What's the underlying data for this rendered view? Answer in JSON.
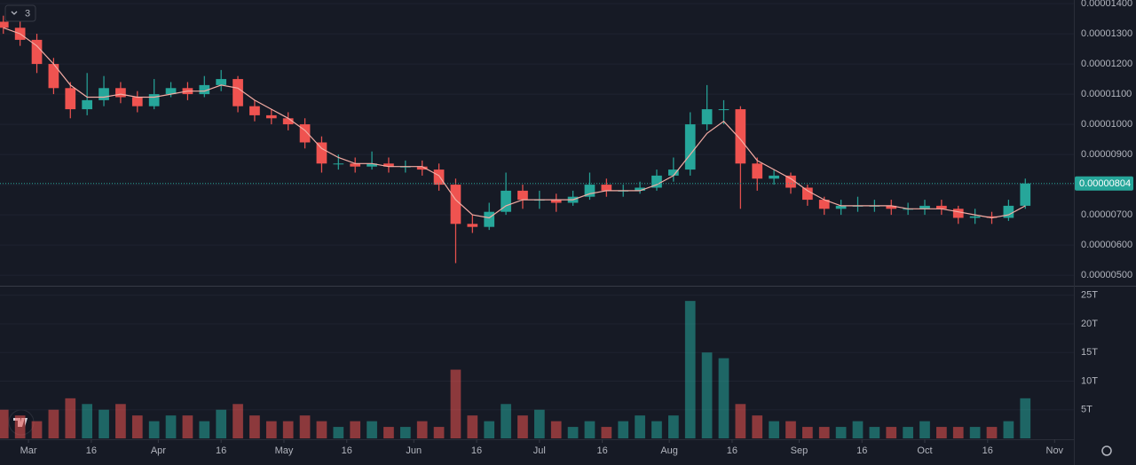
{
  "toolbar": {
    "indicator_count": 3
  },
  "chart_data": {
    "type": "candlestick",
    "x": [
      -6,
      -2,
      2,
      6,
      10,
      14,
      18,
      22,
      26,
      30,
      34,
      38,
      42,
      46,
      50,
      54,
      58,
      62,
      66,
      70,
      74,
      78,
      82,
      86,
      90,
      94,
      98,
      102,
      106,
      110,
      114,
      118,
      122,
      126,
      130,
      134,
      138,
      142,
      146,
      150,
      154,
      158,
      162,
      166,
      170,
      174,
      178,
      182,
      186,
      190,
      194,
      198,
      202,
      206,
      210,
      214,
      218,
      222,
      226,
      230,
      234,
      238
    ],
    "open": [
      1.34e-05,
      1.32e-05,
      1.28e-05,
      1.2e-05,
      1.12e-05,
      1.05e-05,
      1.08e-05,
      1.12e-05,
      1.09e-05,
      1.06e-05,
      1.1e-05,
      1.12e-05,
      1.1e-05,
      1.13e-05,
      1.15e-05,
      1.06e-05,
      1.03e-05,
      1.02e-05,
      1e-05,
      9.4e-06,
      8.7e-06,
      8.7e-06,
      8.6e-06,
      8.7e-06,
      8.6e-06,
      8.6e-06,
      8.5e-06,
      8e-06,
      6.7e-06,
      6.6e-06,
      7.1e-06,
      7.8e-06,
      7.5e-06,
      7.5e-06,
      7.4e-06,
      7.6e-06,
      8e-06,
      7.8e-06,
      7.8e-06,
      7.9e-06,
      8.3e-06,
      8.5e-06,
      1e-05,
      1.05e-05,
      1.05e-05,
      8.7e-06,
      8.2e-06,
      8.3e-06,
      7.9e-06,
      7.5e-06,
      7.2e-06,
      7.3e-06,
      7.3e-06,
      7.3e-06,
      7.2e-06,
      7.2e-06,
      7.3e-06,
      7.2e-06,
      6.9e-06,
      6.95e-06,
      6.9e-06,
      7.3e-06
    ],
    "high": [
      1.36e-05,
      1.34e-05,
      1.3e-05,
      1.22e-05,
      1.14e-05,
      1.17e-05,
      1.16e-05,
      1.14e-05,
      1.11e-05,
      1.15e-05,
      1.14e-05,
      1.14e-05,
      1.16e-05,
      1.18e-05,
      1.16e-05,
      1.08e-05,
      1.05e-05,
      1.04e-05,
      1.02e-05,
      9.6e-06,
      9e-06,
      8.9e-06,
      9.1e-06,
      8.9e-06,
      8.8e-06,
      8.8e-06,
      8.7e-06,
      8.2e-06,
      7e-06,
      7.4e-06,
      8.4e-06,
      8e-06,
      7.8e-06,
      7.7e-06,
      7.8e-06,
      8.4e-06,
      8.2e-06,
      8e-06,
      8.1e-06,
      8.5e-06,
      8.9e-06,
      1.04e-05,
      1.13e-05,
      1.08e-05,
      1.06e-05,
      8.9e-06,
      8.5e-06,
      8.4e-06,
      8e-06,
      7.6e-06,
      7.5e-06,
      7.6e-06,
      7.5e-06,
      7.5e-06,
      7.4e-06,
      7.5e-06,
      7.5e-06,
      7.3e-06,
      7.2e-06,
      7.1e-06,
      7.5e-06,
      8.2e-06
    ],
    "low": [
      1.3e-05,
      1.26e-05,
      1.17e-05,
      1.1e-05,
      1.02e-05,
      1.03e-05,
      1.06e-05,
      1.07e-05,
      1.04e-05,
      1.05e-05,
      1.09e-05,
      1.08e-05,
      1.09e-05,
      1.11e-05,
      1.04e-05,
      1.01e-05,
      1e-05,
      9.8e-06,
      9.2e-06,
      8.4e-06,
      8.5e-06,
      8.4e-06,
      8.5e-06,
      8.4e-06,
      8.4e-06,
      8.3e-06,
      7.8e-06,
      5.4e-06,
      6.4e-06,
      6.5e-06,
      7e-06,
      7.2e-06,
      7.2e-06,
      7.1e-06,
      7.3e-06,
      7.5e-06,
      7.6e-06,
      7.6e-06,
      7.7e-06,
      7.8e-06,
      8.1e-06,
      8.3e-06,
      9.8e-06,
      1e-05,
      7.2e-06,
      7.8e-06,
      8e-06,
      7.7e-06,
      7.3e-06,
      7e-06,
      7e-06,
      7.1e-06,
      7.1e-06,
      7e-06,
      7e-06,
      7e-06,
      7e-06,
      6.7e-06,
      6.7e-06,
      6.7e-06,
      6.8e-06,
      7.2e-06
    ],
    "close": [
      1.32e-05,
      1.28e-05,
      1.2e-05,
      1.12e-05,
      1.05e-05,
      1.08e-05,
      1.12e-05,
      1.09e-05,
      1.06e-05,
      1.1e-05,
      1.12e-05,
      1.1e-05,
      1.13e-05,
      1.15e-05,
      1.06e-05,
      1.03e-05,
      1.02e-05,
      1e-05,
      9.4e-06,
      8.7e-06,
      8.7e-06,
      8.6e-06,
      8.7e-06,
      8.6e-06,
      8.6e-06,
      8.5e-06,
      8e-06,
      6.7e-06,
      6.6e-06,
      7.1e-06,
      7.8e-06,
      7.5e-06,
      7.5e-06,
      7.4e-06,
      7.6e-06,
      8e-06,
      7.8e-06,
      7.8e-06,
      7.9e-06,
      8.3e-06,
      8.5e-06,
      1e-05,
      1.05e-05,
      1.05e-05,
      8.7e-06,
      8.2e-06,
      8.3e-06,
      7.9e-06,
      7.5e-06,
      7.2e-06,
      7.3e-06,
      7.3e-06,
      7.3e-06,
      7.2e-06,
      7.2e-06,
      7.3e-06,
      7.2e-06,
      6.9e-06,
      6.95e-06,
      6.9e-06,
      7.3e-06,
      8.04e-06
    ],
    "ma": {
      "color": "#f4aca4",
      "values": [
        1.32e-05,
        1.3e-05,
        1.26e-05,
        1.2e-05,
        1.13e-05,
        1.09e-05,
        1.09e-05,
        1.1e-05,
        1.09e-05,
        1.09e-05,
        1.1e-05,
        1.11e-05,
        1.11e-05,
        1.13e-05,
        1.12e-05,
        1.08e-05,
        1.05e-05,
        1.02e-05,
        9.8e-06,
        9.2e-06,
        8.9e-06,
        8.7e-06,
        8.7e-06,
        8.6e-06,
        8.6e-06,
        8.6e-06,
        8.3e-06,
        7.5e-06,
        7e-06,
        6.9e-06,
        7.3e-06,
        7.5e-06,
        7.5e-06,
        7.5e-06,
        7.5e-06,
        7.7e-06,
        7.8e-06,
        7.8e-06,
        7.8e-06,
        8e-06,
        8.3e-06,
        9e-06,
        9.7e-06,
        1.01e-05,
        9.5e-06,
        8.8e-06,
        8.5e-06,
        8.2e-06,
        7.8e-06,
        7.5e-06,
        7.3e-06,
        7.3e-06,
        7.3e-06,
        7.3e-06,
        7.2e-06,
        7.2e-06,
        7.2e-06,
        7.1e-06,
        7e-06,
        6.9e-06,
        7e-06,
        7.3e-06
      ]
    },
    "volume": [
      5000000000000.0,
      4000000000000.0,
      3000000000000.0,
      5000000000000.0,
      7000000000000.0,
      6000000000000.0,
      5000000000000.0,
      6000000000000.0,
      4000000000000.0,
      3000000000000.0,
      4000000000000.0,
      4000000000000.0,
      3000000000000.0,
      5000000000000.0,
      6000000000000.0,
      4000000000000.0,
      3000000000000.0,
      3000000000000.0,
      4000000000000.0,
      3000000000000.0,
      2000000000000.0,
      3000000000000.0,
      3000000000000.0,
      2000000000000.0,
      2000000000000.0,
      3000000000000.0,
      2000000000000.0,
      12000000000000.0,
      4000000000000.0,
      3000000000000.0,
      6000000000000.0,
      4000000000000.0,
      5000000000000.0,
      3000000000000.0,
      2000000000000.0,
      3000000000000.0,
      2000000000000.0,
      3000000000000.0,
      4000000000000.0,
      3000000000000.0,
      4000000000000.0,
      24000000000000.0,
      15000000000000.0,
      14000000000000.0,
      6000000000000.0,
      4000000000000.0,
      3000000000000.0,
      3000000000000.0,
      2000000000000.0,
      2000000000000.0,
      2000000000000.0,
      3000000000000.0,
      2000000000000.0,
      2000000000000.0,
      2000000000000.0,
      3000000000000.0,
      2000000000000.0,
      2000000000000.0,
      2000000000000.0,
      2000000000000.0,
      3000000000000.0,
      7000000000000.0
    ],
    "up_color": "#26a69a",
    "down_color": "#ef5350",
    "xlim": [
      -6.8,
      249.6
    ],
    "xticks": [
      {
        "value": 0,
        "label": "Mar"
      },
      {
        "value": 15,
        "label": "16"
      },
      {
        "value": 31,
        "label": "Apr"
      },
      {
        "value": 46,
        "label": "16"
      },
      {
        "value": 61,
        "label": "May"
      },
      {
        "value": 76,
        "label": "16"
      },
      {
        "value": 92,
        "label": "Jun"
      },
      {
        "value": 107,
        "label": "16"
      },
      {
        "value": 122,
        "label": "Jul"
      },
      {
        "value": 137,
        "label": "16"
      },
      {
        "value": 153,
        "label": "Aug"
      },
      {
        "value": 168,
        "label": "16"
      },
      {
        "value": 184,
        "label": "Sep"
      },
      {
        "value": 199,
        "label": "16"
      },
      {
        "value": 214,
        "label": "Oct"
      },
      {
        "value": 229,
        "label": "16"
      },
      {
        "value": 245,
        "label": "Nov"
      }
    ],
    "ylim": [
      4.65e-06,
      1.412e-05
    ],
    "yticks": [
      {
        "value": 5e-06,
        "label": "0.00000500"
      },
      {
        "value": 6e-06,
        "label": "0.00000600"
      },
      {
        "value": 7e-06,
        "label": "0.00000700"
      },
      {
        "value": 8e-06,
        "label": "0.00000800"
      },
      {
        "value": 9e-06,
        "label": "0.00000900"
      },
      {
        "value": 1e-05,
        "label": "0.00001000"
      },
      {
        "value": 1.1e-05,
        "label": "0.00001100"
      },
      {
        "value": 1.2e-05,
        "label": "0.00001200"
      },
      {
        "value": 1.3e-05,
        "label": "0.00001300"
      },
      {
        "value": 1.4e-05,
        "label": "0.00001400"
      }
    ],
    "volume_ylim": [
      0,
      26500000000000.0
    ],
    "volume_yticks": [
      {
        "value": 5000000000000.0,
        "label": "5T"
      },
      {
        "value": 10000000000000.0,
        "label": "10T"
      },
      {
        "value": 15000000000000.0,
        "label": "15T"
      },
      {
        "value": 20000000000000.0,
        "label": "20T"
      },
      {
        "value": 25000000000000.0,
        "label": "25T"
      }
    ],
    "last_price": {
      "value": 8.04e-06,
      "label": "0.00000804"
    }
  }
}
